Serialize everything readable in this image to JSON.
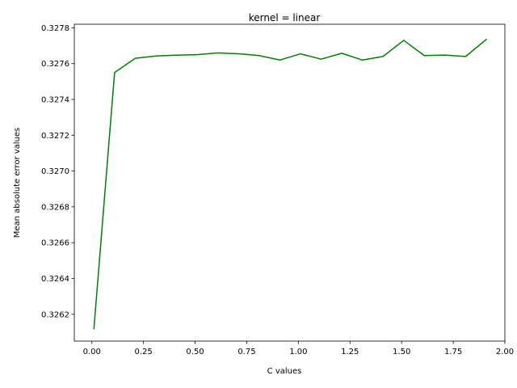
{
  "chart_data": {
    "type": "line",
    "title": "kernel = linear",
    "xlabel": "C values",
    "ylabel": "Mean absolute error values",
    "xlim": [
      -0.085,
      2.0
    ],
    "ylim": [
      0.32605,
      0.32782
    ],
    "xticks": [
      0.0,
      0.25,
      0.5,
      0.75,
      1.0,
      1.25,
      1.5,
      1.75,
      2.0
    ],
    "xtick_labels": [
      "0.00",
      "0.25",
      "0.50",
      "0.75",
      "1.00",
      "1.25",
      "1.50",
      "1.75",
      "2.00"
    ],
    "yticks": [
      0.3262,
      0.3264,
      0.3266,
      0.3268,
      0.327,
      0.3272,
      0.3274,
      0.3276,
      0.3278
    ],
    "ytick_labels": [
      "0.3262",
      "0.3264",
      "0.3266",
      "0.3268",
      "0.3270",
      "0.3272",
      "0.3274",
      "0.3276",
      "0.3278"
    ],
    "grid": false,
    "series": [
      {
        "color": "#008000",
        "x": [
          0.01,
          0.11,
          0.21,
          0.31,
          0.41,
          0.51,
          0.61,
          0.71,
          0.81,
          0.91,
          1.01,
          1.11,
          1.21,
          1.31,
          1.41,
          1.51,
          1.61,
          1.71,
          1.81,
          1.91
        ],
        "y": [
          0.32612,
          0.32755,
          0.32763,
          0.327643,
          0.327647,
          0.32765,
          0.32766,
          0.327655,
          0.327645,
          0.32762,
          0.327655,
          0.327625,
          0.327658,
          0.32762,
          0.32764,
          0.32773,
          0.327645,
          0.327648,
          0.32764,
          0.327735
        ]
      }
    ]
  }
}
